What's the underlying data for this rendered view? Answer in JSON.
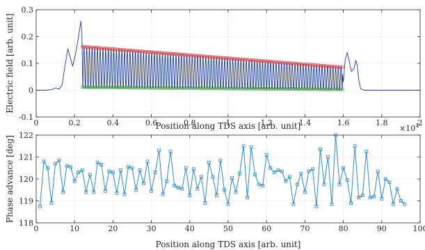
{
  "chart_data": [
    {
      "type": "line",
      "xlabel": "Position along TDS axis [arb. unit]",
      "ylabel": "Electric field [arb. unit]",
      "xlim": [
        0,
        20000
      ],
      "ylim": [
        -0.1,
        0.3
      ],
      "x_ticks": [
        0,
        2000,
        4000,
        6000,
        8000,
        10000,
        12000,
        14000,
        16000,
        18000,
        20000
      ],
      "x_tick_labels": [
        "0",
        "0.2",
        "0.4",
        "0.6",
        "0.8",
        "1",
        "1.2",
        "1.4",
        "1.6",
        "1.8",
        "2"
      ],
      "x_exponent_label": "×10",
      "x_exponent_power": "4",
      "y_ticks": [
        -0.1,
        0,
        0.1,
        0.2,
        0.3
      ],
      "y_tick_labels": [
        "-0.1",
        "0",
        "0.1",
        "0.2",
        "0.3"
      ],
      "grid": true,
      "legend": "none",
      "signal": {
        "color": "#1f3a93",
        "precursor": [
          [
            0,
            0
          ],
          [
            500,
            0
          ],
          [
            800,
            0.002
          ],
          [
            1000,
            0.008
          ],
          [
            1200,
            0.004
          ],
          [
            1350,
            0.02
          ],
          [
            1500,
            0.09
          ],
          [
            1650,
            0.155
          ],
          [
            1780,
            0.12
          ],
          [
            1900,
            0.09
          ],
          [
            2050,
            0.135
          ],
          [
            2150,
            0.175
          ],
          [
            2250,
            0.22
          ],
          [
            2330,
            0.258
          ],
          [
            2380,
            0.21
          ],
          [
            2420,
            0.05
          ]
        ],
        "oscillation": {
          "x_start": 2420,
          "x_end": 15950,
          "cycles": 96,
          "upper_start": 0.16,
          "upper_end": 0.083,
          "lower_start": 0.01,
          "lower_end": 0.002
        },
        "tail": [
          [
            15950,
            0.06
          ],
          [
            16000,
            0.03
          ],
          [
            16100,
            0.115
          ],
          [
            16200,
            0.14
          ],
          [
            16300,
            0.11
          ],
          [
            16420,
            0.07
          ],
          [
            16550,
            0.08
          ],
          [
            16650,
            0.11
          ],
          [
            16720,
            0.095
          ],
          [
            16800,
            0.04
          ],
          [
            16900,
            0.005
          ],
          [
            17100,
            0
          ],
          [
            20000,
            0
          ]
        ]
      },
      "upper_envelope": {
        "color": "#c8242c",
        "x_start": 2420,
        "x_end": 15950,
        "y_start": 0.162,
        "y_end": 0.085
      },
      "lower_envelope": {
        "color": "#2e8b2e",
        "x_start": 2420,
        "x_end": 15950,
        "y_start": 0.011,
        "y_end": 0.003
      }
    },
    {
      "type": "line",
      "xlabel": "Position along TDS axis [arb. unit]",
      "ylabel": "Phase advance  [deg]",
      "xlim": [
        0,
        100
      ],
      "ylim": [
        118,
        122
      ],
      "x_ticks": [
        0,
        10,
        20,
        30,
        40,
        50,
        60,
        70,
        80,
        90,
        100
      ],
      "x_tick_labels": [
        "0",
        "10",
        "20",
        "30",
        "40",
        "50",
        "60",
        "70",
        "80",
        "90",
        "100"
      ],
      "y_ticks": [
        118,
        119,
        120,
        121,
        122
      ],
      "y_tick_labels": [
        "118",
        "119",
        "120",
        "121",
        "122"
      ],
      "grid": true,
      "legend": "none",
      "series": [
        {
          "color": "#2e86c1",
          "marker": "square",
          "x": [
            1,
            2,
            3,
            4,
            5,
            6,
            7,
            8,
            9,
            10,
            11,
            12,
            13,
            14,
            15,
            16,
            17,
            18,
            19,
            20,
            21,
            22,
            23,
            24,
            25,
            26,
            27,
            28,
            29,
            30,
            31,
            32,
            33,
            34,
            35,
            36,
            37,
            38,
            39,
            40,
            41,
            42,
            43,
            44,
            45,
            46,
            47,
            48,
            49,
            50,
            51,
            52,
            53,
            54,
            55,
            56,
            57,
            58,
            59,
            60,
            61,
            62,
            63,
            64,
            65,
            66,
            67,
            68,
            69,
            70,
            71,
            72,
            73,
            74,
            75,
            76,
            77,
            78,
            79,
            80,
            81,
            82,
            83,
            84,
            85,
            86,
            87,
            88,
            89,
            90,
            91,
            92,
            93,
            94,
            95,
            96
          ],
          "y": [
            118.75,
            120.8,
            120.5,
            118.9,
            120.7,
            120.85,
            119.4,
            120.6,
            120.55,
            119.9,
            120.3,
            120.4,
            119.4,
            120.2,
            119.4,
            120.75,
            120.65,
            119.45,
            120.35,
            120.3,
            119.35,
            120.4,
            119.3,
            120.55,
            120.5,
            119.5,
            120.4,
            119.8,
            120.8,
            119.45,
            120.3,
            121.3,
            119.3,
            119.9,
            121.25,
            119.7,
            119.6,
            119.55,
            120.5,
            119.25,
            120.45,
            119.55,
            120.1,
            118.9,
            120.75,
            120.1,
            119.25,
            120.85,
            119.5,
            118.85,
            120.05,
            119.4,
            120.25,
            121.5,
            119.15,
            121.45,
            120.2,
            119.75,
            119.7,
            121.1,
            120.5,
            120.3,
            120.4,
            120.35,
            119.9,
            120.1,
            118.85,
            119.75,
            120.25,
            119.4,
            120.35,
            120.45,
            118.75,
            121.35,
            119.75,
            121.0,
            118.85,
            122.0,
            119.75,
            120.5,
            119.95,
            118.9,
            121.5,
            119.15,
            119.25,
            121.25,
            119.15,
            119.2,
            120.35,
            119.1,
            120.0,
            119.85,
            118.85,
            119.55,
            119.0,
            118.85
          ]
        }
      ]
    }
  ]
}
